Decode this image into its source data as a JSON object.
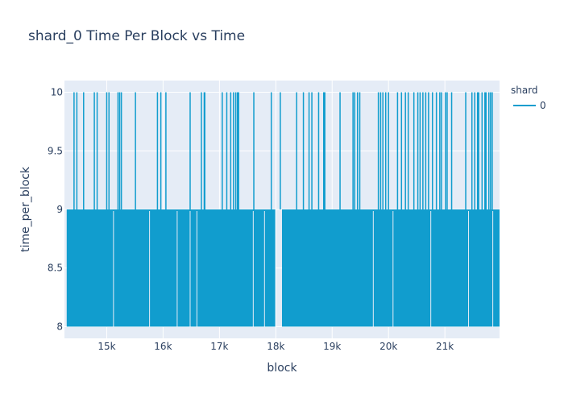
{
  "chart_data": {
    "type": "line",
    "title": "shard_0 Time Per Block vs Time",
    "xlabel": "block",
    "ylabel": "time_per_block",
    "xlim": [
      14250,
      21970
    ],
    "ylim": [
      7.9,
      10.1
    ],
    "x_ticks": [
      15000,
      16000,
      17000,
      18000,
      19000,
      20000,
      21000
    ],
    "x_tick_labels": [
      "15k",
      "16k",
      "17k",
      "18k",
      "19k",
      "20k",
      "21k"
    ],
    "y_ticks": [
      8,
      8.5,
      9,
      9.5,
      10
    ],
    "y_tick_labels": [
      "8",
      "8.5",
      "9",
      "9.5",
      "10"
    ],
    "grid": true,
    "legend": {
      "title": "shard",
      "position": "top-right"
    },
    "series": [
      {
        "name": "0",
        "color": "#119dce",
        "range": [
          8,
          9
        ],
        "dense_x_range": [
          14290,
          21970
        ],
        "gap_x_range": [
          17990,
          18110
        ],
        "values_description_points": [
          {
            "x": 14280,
            "y": 8
          },
          {
            "x": 14290,
            "y": 9
          },
          {
            "x": 17990,
            "y": 8
          },
          {
            "x": 18110,
            "y": 9
          },
          {
            "x": 21970,
            "y": 8
          }
        ],
        "spikes_to_10": [
          14420,
          14470,
          14590,
          14780,
          14830,
          15000,
          15040,
          15200,
          15230,
          15260,
          15510,
          15900,
          15960,
          16050,
          16480,
          16680,
          16730,
          16740,
          17050,
          17130,
          17200,
          17250,
          17290,
          17320,
          17340,
          17610,
          17920,
          18080,
          18370,
          18490,
          18590,
          18640,
          18760,
          18850,
          18870,
          19140,
          19370,
          19400,
          19450,
          19490,
          19820,
          19860,
          19900,
          19950,
          20000,
          20160,
          20230,
          20300,
          20350,
          20450,
          20520,
          20560,
          20610,
          20660,
          20710,
          20780,
          20850,
          20910,
          20940,
          21010,
          21040,
          21120,
          21370,
          21480,
          21530,
          21580,
          21600,
          21660,
          21710,
          21730,
          21780,
          21810,
          21840
        ],
        "gaps_at_8": [
          15120,
          15760,
          16250,
          16480,
          16600,
          17600,
          17800,
          19730,
          20080,
          20750,
          21420,
          21850
        ]
      }
    ]
  }
}
